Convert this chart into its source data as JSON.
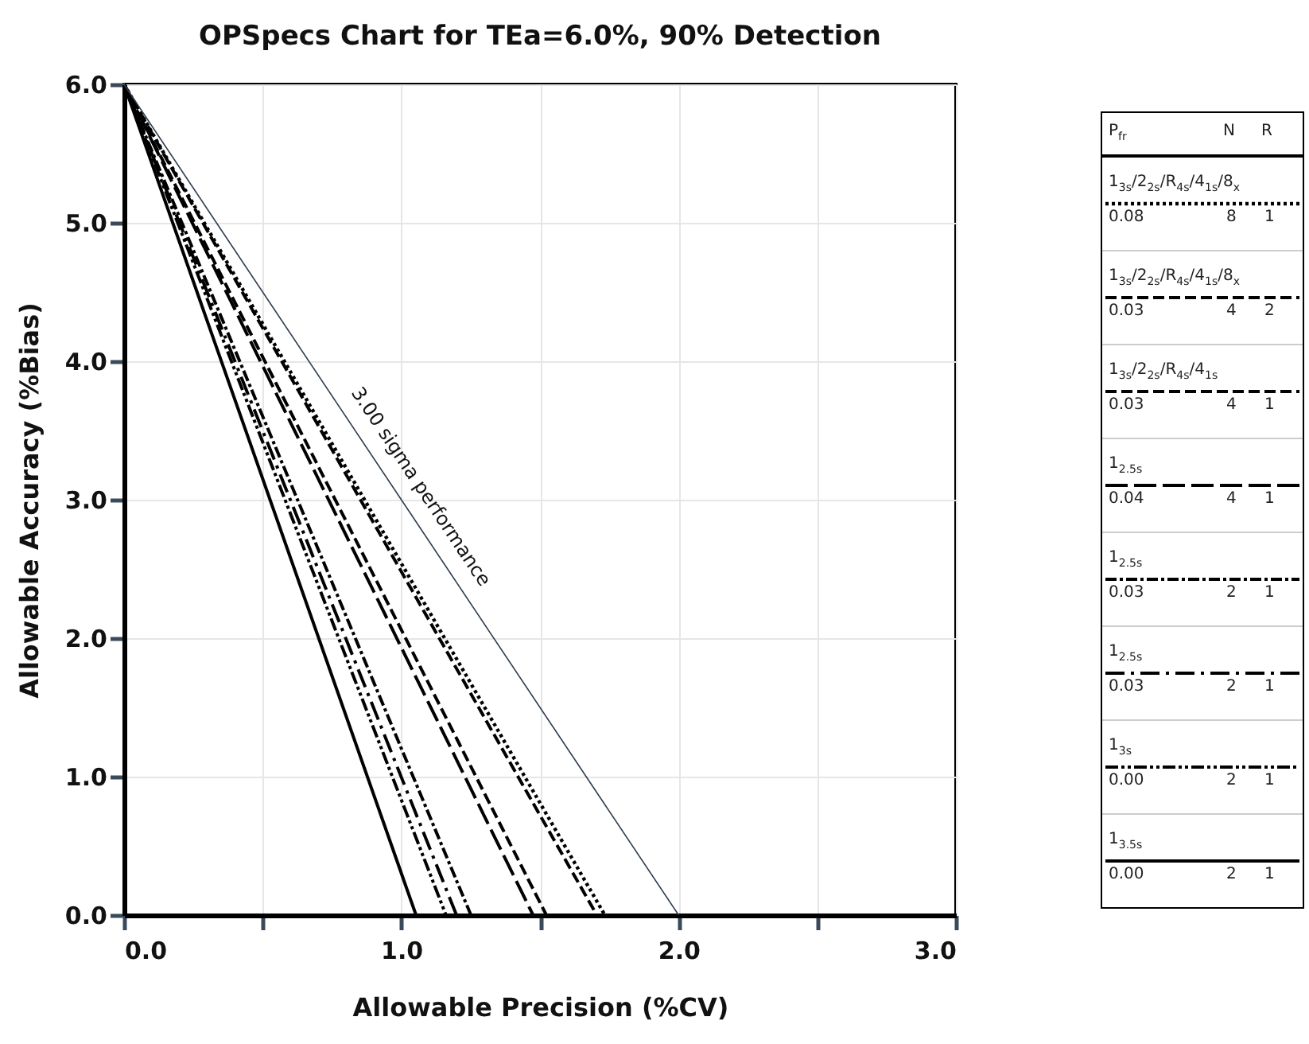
{
  "chart_data": {
    "type": "line",
    "title": "OPSpecs Chart for TEa=6.0%, 90% Detection",
    "xlabel": "Allowable Precision (%CV)",
    "ylabel": "Allowable Accuracy (%Bias)",
    "legend_title": "P$_{fr}$",
    "annotations": [
      {
        "text": "3.00 sigma performance",
        "x": 1.0,
        "y": 3.0
      },
      "N",
      "R",
      "0.08",
      "8",
      "1",
      "0.03",
      "4",
      "2",
      "0.03",
      "4",
      "1",
      "0.04",
      "4",
      "1",
      "0.03",
      "2",
      "1",
      "0.03",
      "2",
      "1",
      "0.00",
      "2",
      "1",
      "0.00",
      "2",
      "1"
    ],
    "series": [
      {
        "name": "1$_{3s}$/2$_{2s}$/R$_{4s}$/4$_{1s}$/8$_{x}$",
        "color": "#000000",
        "line_style": "dotted",
        "x": [
          0,
          1.734
        ],
        "values": [
          6,
          0
        ]
      },
      {
        "name": "1$_{3s}$/2$_{2s}$/R$_{4s}$/4$_{1s}$/8$_{x}$",
        "color": "#000000",
        "line_style": "dashed",
        "x": [
          0,
          1.705
        ],
        "values": [
          6,
          0
        ]
      },
      {
        "name": "1$_{3s}$/2$_{2s}$/R$_{4s}$/4$_{1s}$",
        "color": "#000000",
        "line_style": "dashed",
        "x": [
          0,
          1.523
        ],
        "values": [
          6,
          0
        ]
      },
      {
        "name": "1$_{2.5s}$",
        "color": "#000000",
        "line_style": "longdash",
        "x": [
          0,
          1.475
        ],
        "values": [
          6,
          0
        ]
      },
      {
        "name": "1$_{2.5s}$",
        "color": "#000000",
        "line_style": "dashdot",
        "x": [
          0,
          1.251
        ],
        "values": [
          6,
          0
        ]
      },
      {
        "name": "1$_{2.5s}$",
        "color": "#000000",
        "line_style": "longdashdot",
        "x": [
          0,
          1.199
        ],
        "values": [
          6,
          0
        ]
      },
      {
        "name": "1$_{3s}$",
        "color": "#000000",
        "line_style": "dashdotdot",
        "x": [
          0,
          1.161
        ],
        "values": [
          6,
          0
        ]
      },
      {
        "name": "1$_{3.5s}$",
        "color": "#000000",
        "line_style": "solid",
        "x": [
          0,
          1.053
        ],
        "values": [
          6,
          0
        ]
      },
      {
        "color": "#2f3e4e",
        "line_style": "solid",
        "x": [
          0,
          2.0
        ],
        "values": [
          6,
          0
        ]
      }
    ],
    "xlim": [
      0,
      3.0
    ],
    "ylim": [
      0,
      6.0
    ],
    "xticks": [
      {
        "value": 0,
        "label": "0.0"
      },
      {
        "value": 0.5,
        "label": null
      },
      {
        "value": 1.0,
        "label": "1.0"
      },
      {
        "value": 1.5,
        "label": null
      },
      {
        "value": 2.0,
        "label": "2.0"
      },
      {
        "value": 2.5,
        "label": null
      },
      {
        "value": 3.0,
        "label": "3.0"
      }
    ],
    "yticks": [
      {
        "value": 0,
        "label": "0.0"
      },
      {
        "value": 1,
        "label": "1.0"
      },
      {
        "value": 2,
        "label": "2.0"
      },
      {
        "value": 3,
        "label": "3.0"
      },
      {
        "value": 4,
        "label": "4.0"
      },
      {
        "value": 5,
        "label": "5.0"
      },
      {
        "value": 6,
        "label": "6.0"
      }
    ],
    "grid": true,
    "legend": "right"
  }
}
